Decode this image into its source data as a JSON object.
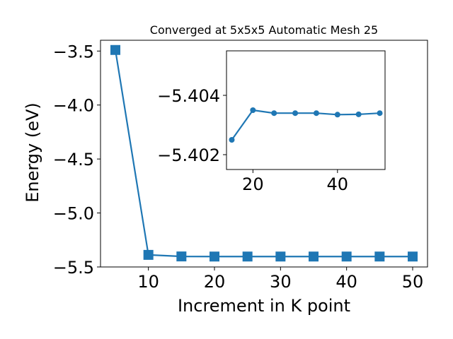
{
  "chart_data": [
    {
      "type": "line",
      "title": "Converged at 5x5x5 Automatic Mesh 25",
      "xlabel": "Increment in K point",
      "ylabel": "Energy (eV)",
      "xlim": [
        2.75,
        52.25
      ],
      "ylim": [
        -5.5,
        -3.4
      ],
      "xticks": [
        10,
        20,
        30,
        40,
        50
      ],
      "yticks": [
        -3.5,
        -4.0,
        -4.5,
        -5.0,
        -5.5
      ],
      "xtick_labels": [
        "10",
        "20",
        "30",
        "40",
        "50"
      ],
      "ytick_labels": [
        "−3.5",
        "−4.0",
        "−4.5",
        "−5.0",
        "−5.5"
      ],
      "grid": false,
      "color": "#1f77b4",
      "marker": "square",
      "series": [
        {
          "x": [
            5,
            10,
            15,
            20,
            25,
            30,
            35,
            40,
            45,
            50
          ],
          "y": [
            -3.49,
            -5.388,
            -5.4025,
            -5.4035,
            -5.4034,
            -5.4034,
            -5.4034,
            -5.40335,
            -5.40336,
            -5.4034
          ]
        }
      ]
    },
    {
      "type": "line",
      "title": "",
      "xlabel": "",
      "ylabel": "",
      "xlim": [
        13.75,
        51.25
      ],
      "ylim": [
        -5.4015,
        -5.4055
      ],
      "xticks": [
        20,
        40
      ],
      "yticks": [
        -5.404,
        -5.402
      ],
      "xtick_labels": [
        "20",
        "40"
      ],
      "ytick_labels": [
        "−5.404",
        "−5.402"
      ],
      "grid": false,
      "color": "#1f77b4",
      "marker": "circle",
      "series": [
        {
          "x": [
            15,
            20,
            25,
            30,
            35,
            40,
            45,
            50
          ],
          "y": [
            -5.4025,
            -5.4035,
            -5.4034,
            -5.4034,
            -5.4034,
            -5.40335,
            -5.40336,
            -5.4034
          ]
        }
      ]
    }
  ]
}
